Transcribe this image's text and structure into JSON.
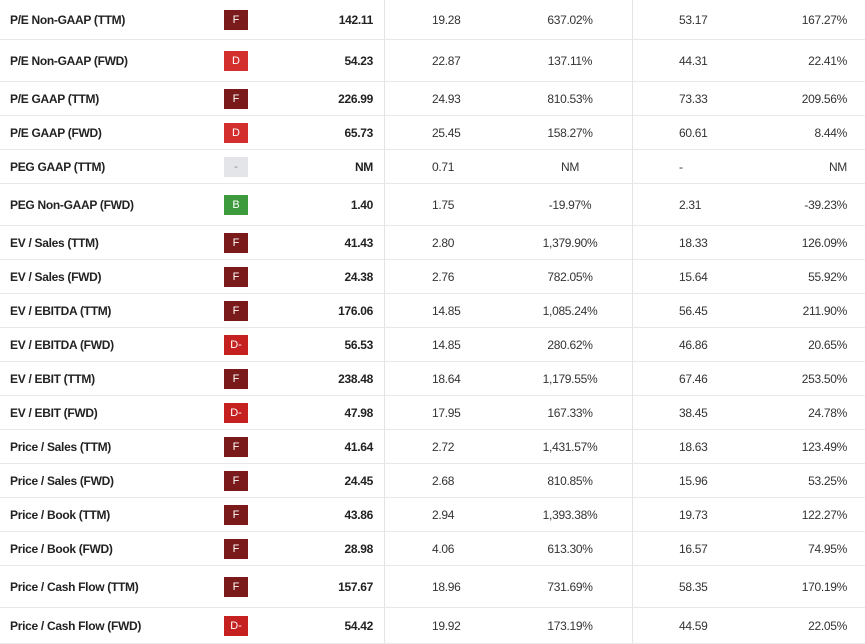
{
  "grade_colors": {
    "F": "#7b1a1a",
    "D": "#d32f2f",
    "D-": "#c62121",
    "B": "#3d9a3d",
    "-": "#e3e5e8"
  },
  "rows": [
    {
      "label": "P/E Non-GAAP (TTM)",
      "grade": "F",
      "value": "142.11",
      "sector": "19.28",
      "diff": "637.02%",
      "avg5y": "53.17",
      "diff5y": "167.27%"
    },
    {
      "label": "P/E Non-GAAP (FWD)",
      "grade": "D",
      "value": "54.23",
      "sector": "22.87",
      "diff": "137.11%",
      "avg5y": "44.31",
      "diff5y": "22.41%"
    },
    {
      "label": "P/E GAAP (TTM)",
      "grade": "F",
      "value": "226.99",
      "sector": "24.93",
      "diff": "810.53%",
      "avg5y": "73.33",
      "diff5y": "209.56%"
    },
    {
      "label": "P/E GAAP (FWD)",
      "grade": "D",
      "value": "65.73",
      "sector": "25.45",
      "diff": "158.27%",
      "avg5y": "60.61",
      "diff5y": "8.44%"
    },
    {
      "label": "PEG GAAP (TTM)",
      "grade": "-",
      "value": "NM",
      "sector": "0.71",
      "diff": "NM",
      "avg5y": "-",
      "diff5y": "NM"
    },
    {
      "label": "PEG Non-GAAP (FWD)",
      "grade": "B",
      "value": "1.40",
      "sector": "1.75",
      "diff": "-19.97%",
      "avg5y": "2.31",
      "diff5y": "-39.23%"
    },
    {
      "label": "EV / Sales (TTM)",
      "grade": "F",
      "value": "41.43",
      "sector": "2.80",
      "diff": "1,379.90%",
      "avg5y": "18.33",
      "diff5y": "126.09%"
    },
    {
      "label": "EV / Sales (FWD)",
      "grade": "F",
      "value": "24.38",
      "sector": "2.76",
      "diff": "782.05%",
      "avg5y": "15.64",
      "diff5y": "55.92%"
    },
    {
      "label": "EV / EBITDA (TTM)",
      "grade": "F",
      "value": "176.06",
      "sector": "14.85",
      "diff": "1,085.24%",
      "avg5y": "56.45",
      "diff5y": "211.90%"
    },
    {
      "label": "EV / EBITDA (FWD)",
      "grade": "D-",
      "value": "56.53",
      "sector": "14.85",
      "diff": "280.62%",
      "avg5y": "46.86",
      "diff5y": "20.65%"
    },
    {
      "label": "EV / EBIT (TTM)",
      "grade": "F",
      "value": "238.48",
      "sector": "18.64",
      "diff": "1,179.55%",
      "avg5y": "67.46",
      "diff5y": "253.50%"
    },
    {
      "label": "EV / EBIT (FWD)",
      "grade": "D-",
      "value": "47.98",
      "sector": "17.95",
      "diff": "167.33%",
      "avg5y": "38.45",
      "diff5y": "24.78%"
    },
    {
      "label": "Price / Sales (TTM)",
      "grade": "F",
      "value": "41.64",
      "sector": "2.72",
      "diff": "1,431.57%",
      "avg5y": "18.63",
      "diff5y": "123.49%"
    },
    {
      "label": "Price / Sales (FWD)",
      "grade": "F",
      "value": "24.45",
      "sector": "2.68",
      "diff": "810.85%",
      "avg5y": "15.96",
      "diff5y": "53.25%"
    },
    {
      "label": "Price / Book (TTM)",
      "grade": "F",
      "value": "43.86",
      "sector": "2.94",
      "diff": "1,393.38%",
      "avg5y": "19.73",
      "diff5y": "122.27%"
    },
    {
      "label": "Price / Book (FWD)",
      "grade": "F",
      "value": "28.98",
      "sector": "4.06",
      "diff": "613.30%",
      "avg5y": "16.57",
      "diff5y": "74.95%"
    },
    {
      "label": "Price / Cash Flow (TTM)",
      "grade": "F",
      "value": "157.67",
      "sector": "18.96",
      "diff": "731.69%",
      "avg5y": "58.35",
      "diff5y": "170.19%"
    },
    {
      "label": "Price / Cash Flow (FWD)",
      "grade": "D-",
      "value": "54.42",
      "sector": "19.92",
      "diff": "173.19%",
      "avg5y": "44.59",
      "diff5y": "22.05%"
    }
  ]
}
